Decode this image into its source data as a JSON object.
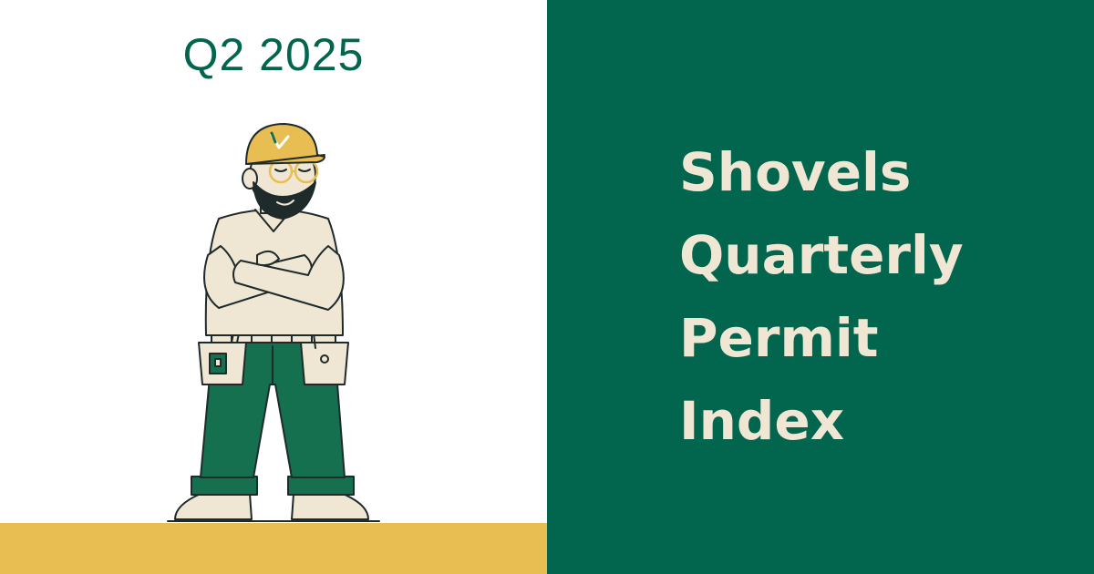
{
  "badge": {
    "quarter": "Q2 2025"
  },
  "title": {
    "lines": [
      "Shovels",
      "Quarterly",
      "Permit",
      "Index"
    ]
  },
  "illustration": {
    "name": "construction-worker-illustration"
  },
  "colors": {
    "brand_green": "#02654e",
    "cream": "#efe6d3",
    "gold": "#e8bd52",
    "white": "#ffffff"
  }
}
